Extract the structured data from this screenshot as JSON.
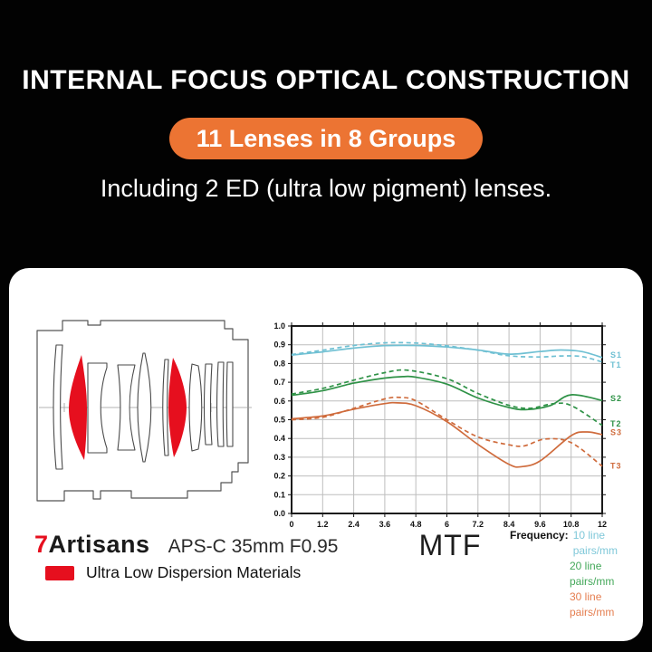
{
  "header": {
    "title": "INTERNAL FOCUS OPTICAL CONSTRUCTION",
    "badge": "11 Lenses in 8 Groups",
    "badge_color": "#EC7433",
    "subtitle": "Including 2 ED (ultra low pigment) lenses."
  },
  "card": {
    "brand": {
      "logo_prefix": "7",
      "logo_prefix_color": "#E60F1E",
      "logo_rest": "Artisans",
      "model": "APS-C 35mm F0.95"
    },
    "uld": {
      "swatch_color": "#E60F1E",
      "label": "Ultra Low Dispersion Materials"
    },
    "chart_title": "MTF",
    "legend": {
      "label": "Frequency:",
      "items": [
        {
          "text": "10 line pairs/mm",
          "color": "#7FC8D9"
        },
        {
          "text": "20 line pairs/mm",
          "color": "#44A85A"
        },
        {
          "text": "30 line pairs/mm",
          "color": "#E57E50"
        }
      ]
    }
  },
  "chart_data": {
    "type": "line",
    "title": "MTF",
    "xlim": [
      0,
      12
    ],
    "ylim": [
      0,
      1
    ],
    "grid": true,
    "x_ticks": [
      0,
      1.2,
      2.4,
      3.6,
      4.8,
      6,
      7.2,
      8.4,
      9.6,
      10.8,
      12
    ],
    "x_tick_labels": [
      "0",
      "1.2",
      "2.4",
      "3.6",
      "4.8",
      "6",
      "7.2",
      "8.4",
      "9.6",
      "10.8",
      "12"
    ],
    "y_ticks": [
      0,
      0.1,
      0.2,
      0.3,
      0.4,
      0.5,
      0.6,
      0.7,
      0.8,
      0.9,
      1.0
    ],
    "y_tick_labels": [
      "0.0",
      "0.1",
      "0.2",
      "0.3",
      "0.4",
      "0.5",
      "0.6",
      "0.7",
      "0.8",
      "0.9",
      "1.0"
    ],
    "series": [
      {
        "name": "S1 (10 lp/mm sagittal)",
        "label": "S1",
        "label_y": 0.845,
        "color": "#6FC0D3",
        "style": "solid",
        "x": [
          0,
          1.2,
          2.4,
          3.6,
          4.8,
          6,
          7.2,
          8.4,
          9.6,
          10.4,
          11.2,
          12
        ],
        "y": [
          0.845,
          0.862,
          0.882,
          0.895,
          0.896,
          0.888,
          0.872,
          0.85,
          0.864,
          0.872,
          0.864,
          0.832
        ]
      },
      {
        "name": "T1 (10 lp/mm tangential)",
        "label": "T1",
        "label_y": 0.793,
        "color": "#6FC0D3",
        "style": "dashed",
        "x": [
          0,
          1.2,
          2.4,
          3.6,
          4.8,
          6,
          7.2,
          8.4,
          9.6,
          10.4,
          11.2,
          12
        ],
        "y": [
          0.848,
          0.871,
          0.896,
          0.91,
          0.909,
          0.894,
          0.871,
          0.841,
          0.835,
          0.84,
          0.837,
          0.808
        ]
      },
      {
        "name": "S2 (20 lp/mm sagittal)",
        "label": "S2",
        "label_y": 0.613,
        "color": "#2F9247",
        "style": "solid",
        "x": [
          0,
          1.2,
          2.4,
          3.6,
          4.3,
          4.8,
          6,
          7.2,
          8.4,
          9.1,
          10,
          10.8,
          12
        ],
        "y": [
          0.63,
          0.655,
          0.695,
          0.722,
          0.73,
          0.727,
          0.69,
          0.616,
          0.565,
          0.554,
          0.576,
          0.633,
          0.603
        ]
      },
      {
        "name": "T2 (20 lp/mm tangential)",
        "label": "T2",
        "label_y": 0.478,
        "color": "#2F9247",
        "style": "dashed",
        "x": [
          0,
          1.2,
          2.4,
          3.6,
          4.5,
          6,
          7.2,
          8.4,
          9.2,
          10.1,
          10.8,
          12
        ],
        "y": [
          0.637,
          0.667,
          0.711,
          0.751,
          0.764,
          0.719,
          0.64,
          0.577,
          0.561,
          0.585,
          0.576,
          0.47
        ]
      },
      {
        "name": "S3 (30 lp/mm sagittal)",
        "label": "S3",
        "label_y": 0.432,
        "color": "#CF6B3C",
        "style": "solid",
        "x": [
          0,
          1.2,
          2.4,
          3.6,
          4.1,
          4.8,
          6,
          7.2,
          8.4,
          8.9,
          9.6,
          10.8,
          11.4,
          12
        ],
        "y": [
          0.505,
          0.52,
          0.556,
          0.586,
          0.59,
          0.575,
          0.49,
          0.368,
          0.262,
          0.25,
          0.28,
          0.415,
          0.435,
          0.421
        ]
      },
      {
        "name": "T3 (30 lp/mm tangential)",
        "label": "T3",
        "label_y": 0.254,
        "color": "#CF6B3C",
        "style": "dashed",
        "x": [
          0,
          1.2,
          2.4,
          3.6,
          4.2,
          4.8,
          6,
          7.2,
          8.4,
          9,
          9.8,
          10.8,
          12
        ],
        "y": [
          0.5,
          0.513,
          0.561,
          0.611,
          0.619,
          0.601,
          0.5,
          0.408,
          0.366,
          0.361,
          0.397,
          0.378,
          0.252
        ]
      }
    ]
  }
}
